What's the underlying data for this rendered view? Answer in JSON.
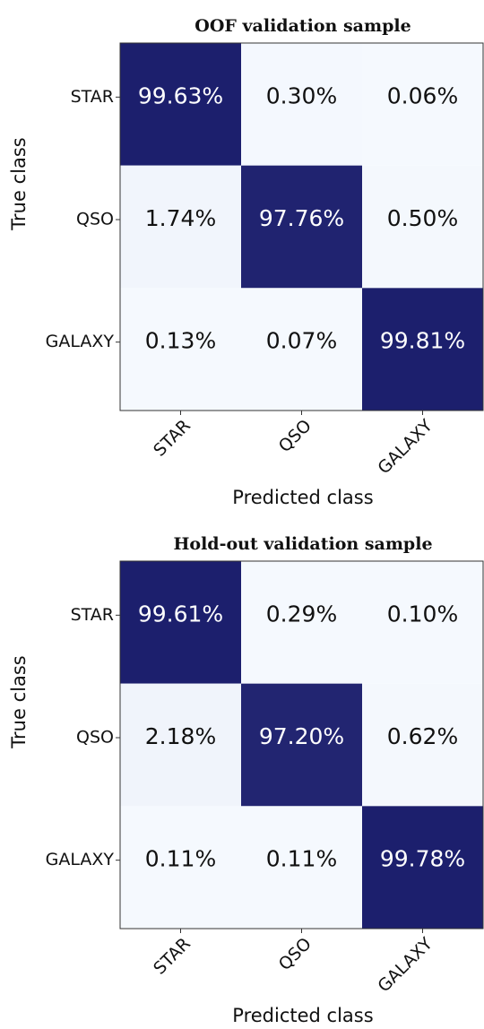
{
  "chart_data": [
    {
      "type": "heatmap",
      "title": "OOF validation sample",
      "x_label": "Predicted class",
      "y_label": "True class",
      "x_categories": [
        "STAR",
        "QSO",
        "GALAXY"
      ],
      "y_categories": [
        "STAR",
        "QSO",
        "GALAXY"
      ],
      "values": [
        [
          99.63,
          0.3,
          0.06
        ],
        [
          1.74,
          97.76,
          0.5
        ],
        [
          0.13,
          0.07,
          99.81
        ]
      ],
      "value_labels": [
        [
          "99.63%",
          "0.30%",
          "0.06%"
        ],
        [
          "1.74%",
          "97.76%",
          "0.50%"
        ],
        [
          "0.13%",
          "0.07%",
          "99.81%"
        ]
      ],
      "colors": [
        "#f5f9fe",
        "#1c1f6d"
      ]
    },
    {
      "type": "heatmap",
      "title": "Hold-out validation sample",
      "x_label": "Predicted class",
      "y_label": "True class",
      "x_categories": [
        "STAR",
        "QSO",
        "GALAXY"
      ],
      "y_categories": [
        "STAR",
        "QSO",
        "GALAXY"
      ],
      "values": [
        [
          99.61,
          0.29,
          0.1
        ],
        [
          2.18,
          97.2,
          0.62
        ],
        [
          0.11,
          0.11,
          99.78
        ]
      ],
      "value_labels": [
        [
          "99.61%",
          "0.29%",
          "0.10%"
        ],
        [
          "2.18%",
          "97.20%",
          "0.62%"
        ],
        [
          "0.11%",
          "0.11%",
          "99.78%"
        ]
      ],
      "colors": [
        "#f5f9fe",
        "#1c1f6d"
      ]
    }
  ]
}
